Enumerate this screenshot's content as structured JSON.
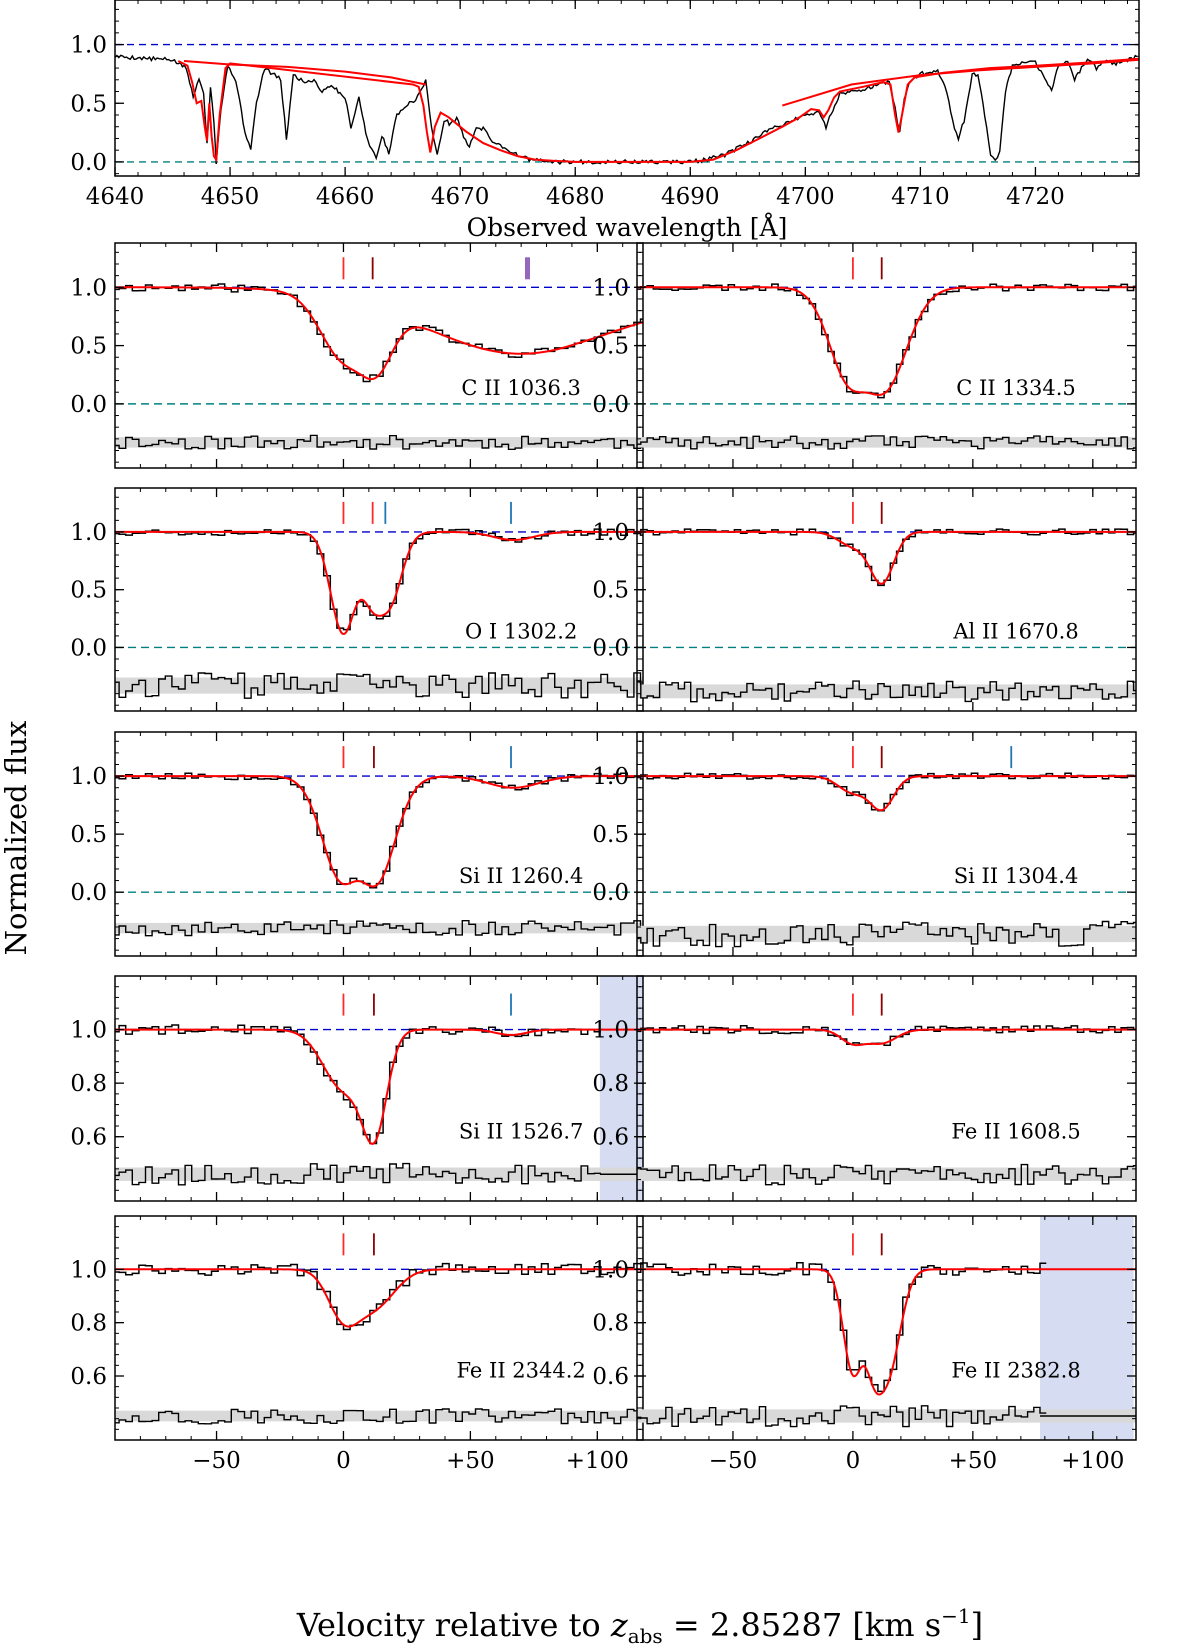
{
  "figure": {
    "ylabel": "Normalized flux",
    "velocity_label_prefix": "Velocity relative to ",
    "velocity_label_z": "z",
    "velocity_label_sub": "abs",
    "velocity_label_suffix": " = 2.85287 [km s",
    "velocity_label_exp": "−1",
    "velocity_label_close": "]",
    "colors": {
      "data": "#000000",
      "model": "#ff0000",
      "continuum": "#0000cc",
      "zero": "#008080",
      "residual_band": "#d9d9d9",
      "masked": "#c8d2ee",
      "tick_red": "#ff2a2a",
      "tick_darkred": "#8b0000",
      "tick_blue": "#1f77b4",
      "tick_purple": "#9467bd"
    }
  },
  "chart_data": [
    {
      "type": "line",
      "panel": "overview",
      "xlabel": "Observed wavelength [Å]",
      "xlim": [
        4640,
        4729
      ],
      "ylim": [
        -0.12,
        1.38
      ],
      "xticks": [
        4640,
        4650,
        4660,
        4670,
        4680,
        4690,
        4700,
        4710,
        4720
      ],
      "xtick_labels": [
        "4640",
        "4650",
        "4660",
        "4670",
        "4680",
        "4690",
        "4700",
        "4710",
        "4720"
      ],
      "yticks": [
        0.0,
        0.5,
        1.0
      ],
      "ytick_labels": [
        "0.0",
        "0.5",
        "1.0"
      ],
      "continuum_level": 1.0,
      "zero_level": 0.0,
      "model_continuum_x": [
        4646.0,
        4650.0,
        4655,
        4660,
        4664,
        4667.0,
        4690,
        4698,
        4704,
        4707.0,
        4710,
        4715,
        4720,
        4725,
        4729
      ],
      "model_continuum_y": [
        0.86,
        0.83,
        0.81,
        0.77,
        0.72,
        0.66,
        0.0,
        0.48,
        0.66,
        0.7,
        0.74,
        0.78,
        0.81,
        0.84,
        0.87
      ],
      "series": [
        {
          "name": "data",
          "x": [
            4640,
            4643,
            4645,
            4646.2,
            4646.8,
            4647.3,
            4647.7,
            4648.0,
            4648.3,
            4648.6,
            4648.8,
            4649.2,
            4649.8,
            4650.5,
            4651.3,
            4651.8,
            4652.3,
            4653,
            4654.4,
            4654.9,
            4655.5,
            4656.5,
            4657.3,
            4658,
            4658.8,
            4659.4,
            4660.0,
            4660.5,
            4661.2,
            4661.8,
            4662.3,
            4662.7,
            4663.2,
            4663.8,
            4664.5,
            4665.0,
            4665.6,
            4666.3,
            4667.0,
            4667.5,
            4668.0,
            4668.6,
            4669.2,
            4669.7,
            4670.3,
            4670.8,
            4671.4,
            4672.0,
            4672.8,
            4673.5,
            4674.2,
            4675.0,
            4676.0,
            4677,
            4678,
            4680,
            4683,
            4686,
            4689,
            4691,
            4693,
            4695,
            4697,
            4698.5,
            4700,
            4701.2,
            4701.8,
            4702.4,
            4703,
            4705,
            4706.5,
            4707.3,
            4707.8,
            4708.2,
            4708.6,
            4709.2,
            4710,
            4711.5,
            4712.3,
            4712.8,
            4713.3,
            4713.8,
            4714.5,
            4715.0,
            4715.6,
            4716.1,
            4716.5,
            4716.9,
            4717.4,
            4718,
            4719,
            4720,
            4720.8,
            4721.4,
            4722,
            4722.8,
            4723.4,
            4724,
            4724.7,
            4725.3,
            4726,
            4727,
            4729
          ],
          "y": [
            0.9,
            0.88,
            0.87,
            0.8,
            0.55,
            0.72,
            0.6,
            0.15,
            0.65,
            0.35,
            0.0,
            0.45,
            0.82,
            0.7,
            0.25,
            0.12,
            0.5,
            0.8,
            0.7,
            0.2,
            0.74,
            0.68,
            0.7,
            0.6,
            0.66,
            0.6,
            0.55,
            0.3,
            0.55,
            0.25,
            0.1,
            0.03,
            0.22,
            0.08,
            0.4,
            0.46,
            0.5,
            0.55,
            0.7,
            0.3,
            0.05,
            0.36,
            0.32,
            0.38,
            0.22,
            0.12,
            0.3,
            0.28,
            0.18,
            0.14,
            0.1,
            0.06,
            0.02,
            0.01,
            0.0,
            0.0,
            0.0,
            0.0,
            0.0,
            0.01,
            0.06,
            0.16,
            0.28,
            0.34,
            0.4,
            0.42,
            0.3,
            0.45,
            0.58,
            0.62,
            0.66,
            0.68,
            0.45,
            0.25,
            0.55,
            0.7,
            0.75,
            0.78,
            0.6,
            0.35,
            0.2,
            0.35,
            0.74,
            0.75,
            0.4,
            0.05,
            0.0,
            0.1,
            0.6,
            0.82,
            0.84,
            0.85,
            0.7,
            0.62,
            0.82,
            0.86,
            0.7,
            0.8,
            0.88,
            0.8,
            0.86,
            0.84,
            0.9
          ]
        },
        {
          "name": "model",
          "x": [
            4645.5,
            4646.3,
            4646.7,
            4647.1,
            4647.5,
            4647.8,
            4648.0,
            4648.2,
            4648.4,
            4648.6,
            4648.8,
            4649.1,
            4649.6,
            4650.0,
            4665.9,
            4666.4,
            4666.8,
            4667.1,
            4667.4,
            4667.8,
            4668.3,
            4669.0,
            4670.5,
            4672.0,
            4673.5,
            4675.0,
            4676.5,
            4678,
            4680,
            4683,
            4687,
            4690,
            4692,
            4694,
            4696,
            4698,
            4699.5,
            4700.5,
            4701.2,
            4701.6,
            4702.0,
            4702.5,
            4703,
            4705,
            4706.8,
            4707.4,
            4707.8,
            4708.1,
            4708.4,
            4708.9,
            4709.5,
            4712,
            4716,
            4720,
            4725,
            4729
          ],
          "y": [
            0.86,
            0.82,
            0.68,
            0.5,
            0.52,
            0.3,
            0.18,
            0.5,
            0.22,
            0.05,
            0.02,
            0.4,
            0.8,
            0.84,
            0.66,
            0.64,
            0.48,
            0.26,
            0.08,
            0.3,
            0.42,
            0.38,
            0.26,
            0.16,
            0.1,
            0.05,
            0.02,
            0.01,
            0.0,
            0.0,
            0.0,
            0.0,
            0.02,
            0.1,
            0.2,
            0.3,
            0.38,
            0.45,
            0.44,
            0.38,
            0.44,
            0.55,
            0.6,
            0.64,
            0.68,
            0.66,
            0.4,
            0.25,
            0.4,
            0.66,
            0.72,
            0.76,
            0.8,
            0.82,
            0.85,
            0.88
          ]
        }
      ]
    },
    {
      "type": "line",
      "panel": "velocity",
      "label": "C II 1036.3",
      "xlim": [
        -90,
        118
      ],
      "ylim": [
        -0.55,
        1.38
      ],
      "xticks": [
        -50,
        0,
        50,
        100
      ],
      "xtick_labels": [
        "−50",
        "0",
        "+50",
        "+100"
      ],
      "yticks": [
        0.0,
        0.5,
        1.0
      ],
      "ytick_labels": [
        "0.0",
        "0.5",
        "1.0"
      ],
      "show_zero": true,
      "comp_ticks": [
        {
          "v": 0,
          "color": "red"
        },
        {
          "v": 11.5,
          "color": "darkred"
        },
        {
          "v": 72.5,
          "color": "purple",
          "thick": true
        }
      ],
      "absorptions": [
        {
          "v": 0,
          "d": 0.55,
          "w": 9
        },
        {
          "v": 12,
          "d": 0.66,
          "w": 7
        },
        {
          "v": 70,
          "d": 0.57,
          "w": 38
        }
      ],
      "slope": 0.0022,
      "slope_start": 92,
      "residual": {
        "center": -0.33,
        "band": 0.09,
        "amp": 0.06
      },
      "noise": 0.035,
      "seed": 11
    },
    {
      "type": "line",
      "panel": "velocity",
      "label": "C II 1334.5",
      "xlim": [
        -90,
        118
      ],
      "ylim": [
        -0.55,
        1.38
      ],
      "xticks": [
        -50,
        0,
        50,
        100
      ],
      "xtick_labels": [
        "−50",
        "0",
        "+50",
        "+100"
      ],
      "yticks": [
        0.0,
        0.5,
        1.0
      ],
      "ytick_labels": [
        "0.0",
        "0.5",
        "1.0"
      ],
      "show_zero": true,
      "comp_ticks": [
        {
          "v": 0,
          "color": "red"
        },
        {
          "v": 12,
          "color": "darkred"
        }
      ],
      "absorptions": [
        {
          "v": 0,
          "d": 0.8,
          "w": 9
        },
        {
          "v": 12,
          "d": 0.88,
          "w": 10
        }
      ],
      "residual": {
        "center": -0.33,
        "band": 0.09,
        "amp": 0.06
      },
      "noise": 0.03,
      "seed": 23
    },
    {
      "type": "line",
      "panel": "velocity",
      "label": "O I 1302.2",
      "xlim": [
        -90,
        118
      ],
      "ylim": [
        -0.55,
        1.38
      ],
      "xticks": [
        -50,
        0,
        50,
        100
      ],
      "xtick_labels": [
        "−50",
        "0",
        "+50",
        "+100"
      ],
      "yticks": [
        0.0,
        0.5,
        1.0
      ],
      "ytick_labels": [
        "0.0",
        "0.5",
        "1.0"
      ],
      "show_zero": true,
      "comp_ticks": [
        {
          "v": 0,
          "color": "red"
        },
        {
          "v": 11.5,
          "color": "red"
        },
        {
          "v": 16.5,
          "color": "blue"
        },
        {
          "v": 66,
          "color": "blue"
        }
      ],
      "absorptions": [
        {
          "v": 0,
          "d": 0.88,
          "w": 5
        },
        {
          "v": 12,
          "d": 0.58,
          "w": 5
        },
        {
          "v": 18,
          "d": 0.55,
          "w": 5
        },
        {
          "v": 67,
          "d": 0.07,
          "w": 8
        }
      ],
      "residual": {
        "center": -0.33,
        "band": 0.14,
        "amp": 0.11
      },
      "noise": 0.03,
      "seed": 37
    },
    {
      "type": "line",
      "panel": "velocity",
      "label": "Al II 1670.8",
      "xlim": [
        -90,
        118
      ],
      "ylim": [
        -0.55,
        1.38
      ],
      "xticks": [
        -50,
        0,
        50,
        100
      ],
      "xtick_labels": [
        "−50",
        "0",
        "+50",
        "+100"
      ],
      "yticks": [
        0.0,
        0.5,
        1.0
      ],
      "ytick_labels": [
        "0.0",
        "0.5",
        "1.0"
      ],
      "show_zero": true,
      "comp_ticks": [
        {
          "v": 0,
          "color": "red"
        },
        {
          "v": 12,
          "color": "darkred"
        }
      ],
      "absorptions": [
        {
          "v": 0,
          "d": 0.12,
          "w": 6
        },
        {
          "v": 12,
          "d": 0.44,
          "w": 5
        }
      ],
      "residual": {
        "center": -0.38,
        "band": 0.12,
        "amp": 0.09
      },
      "noise": 0.025,
      "seed": 41
    },
    {
      "type": "line",
      "panel": "velocity",
      "label": "Si II 1260.4",
      "xlim": [
        -90,
        118
      ],
      "ylim": [
        -0.55,
        1.38
      ],
      "xticks": [
        -50,
        0,
        50,
        100
      ],
      "xtick_labels": [
        "−50",
        "0",
        "+50",
        "+100"
      ],
      "yticks": [
        0.0,
        0.5,
        1.0
      ],
      "ytick_labels": [
        "0.0",
        "0.5",
        "1.0"
      ],
      "show_zero": true,
      "comp_ticks": [
        {
          "v": 0,
          "color": "red"
        },
        {
          "v": 12,
          "color": "darkred"
        },
        {
          "v": 66,
          "color": "blue"
        }
      ],
      "absorptions": [
        {
          "v": 0,
          "d": 0.9,
          "w": 8
        },
        {
          "v": 12,
          "d": 0.93,
          "w": 8
        },
        {
          "v": 67,
          "d": 0.1,
          "w": 10
        }
      ],
      "residual": {
        "center": -0.31,
        "band": 0.09,
        "amp": 0.07
      },
      "noise": 0.03,
      "seed": 53
    },
    {
      "type": "line",
      "panel": "velocity",
      "label": "Si II 1304.4",
      "xlim": [
        -90,
        118
      ],
      "ylim": [
        -0.55,
        1.38
      ],
      "xticks": [
        -50,
        0,
        50,
        100
      ],
      "xtick_labels": [
        "−50",
        "0",
        "+50",
        "+100"
      ],
      "yticks": [
        0.0,
        0.5,
        1.0
      ],
      "ytick_labels": [
        "0.0",
        "0.5",
        "1.0"
      ],
      "show_zero": true,
      "comp_ticks": [
        {
          "v": 0,
          "color": "red"
        },
        {
          "v": 12,
          "color": "darkred"
        },
        {
          "v": 66,
          "color": "blue"
        }
      ],
      "absorptions": [
        {
          "v": 0,
          "d": 0.14,
          "w": 6
        },
        {
          "v": 12,
          "d": 0.28,
          "w": 5
        }
      ],
      "residual": {
        "center": -0.36,
        "band": 0.14,
        "amp": 0.11
      },
      "noise": 0.025,
      "seed": 67
    },
    {
      "type": "line",
      "panel": "velocity",
      "label": "Si II 1526.7",
      "xlim": [
        -90,
        118
      ],
      "ylim": [
        0.36,
        1.2
      ],
      "xticks": [
        -50,
        0,
        50,
        100
      ],
      "xtick_labels": [
        "−50",
        "0",
        "+50",
        "+100"
      ],
      "yticks": [
        0.6,
        0.8,
        1.0
      ],
      "ytick_labels": [
        "0.6",
        "0.8",
        "1.0"
      ],
      "show_zero": false,
      "comp_ticks": [
        {
          "v": 0,
          "color": "red"
        },
        {
          "v": 12,
          "color": "darkred"
        },
        {
          "v": 66,
          "color": "blue"
        }
      ],
      "absorptions": [
        {
          "v": 0,
          "d": 0.22,
          "w": 8
        },
        {
          "v": 12,
          "d": 0.38,
          "w": 5
        },
        {
          "v": 66,
          "d": 0.02,
          "w": 6
        }
      ],
      "masked": [
        101,
        119
      ],
      "residual": {
        "center": 0.46,
        "band": 0.05,
        "amp": 0.04
      },
      "noise": 0.018,
      "seed": 79
    },
    {
      "type": "line",
      "panel": "velocity",
      "label": "Fe II 1608.5",
      "xlim": [
        -90,
        118
      ],
      "ylim": [
        0.36,
        1.2
      ],
      "xticks": [
        -50,
        0,
        50,
        100
      ],
      "xtick_labels": [
        "−50",
        "0",
        "+50",
        "+100"
      ],
      "yticks": [
        0.6,
        0.8,
        1.0
      ],
      "ytick_labels": [
        "0.6",
        "0.8",
        "1.0"
      ],
      "show_zero": false,
      "comp_ticks": [
        {
          "v": 0,
          "color": "red"
        },
        {
          "v": 12,
          "color": "darkred"
        }
      ],
      "absorptions": [
        {
          "v": 0,
          "d": 0.05,
          "w": 5
        },
        {
          "v": 12,
          "d": 0.05,
          "w": 6
        }
      ],
      "residual": {
        "center": 0.46,
        "band": 0.05,
        "amp": 0.04
      },
      "noise": 0.015,
      "seed": 83
    },
    {
      "type": "line",
      "panel": "velocity",
      "label": "Fe II 2344.2",
      "xlim": [
        -90,
        118
      ],
      "ylim": [
        0.36,
        1.2
      ],
      "xticks": [
        -50,
        0,
        50,
        100
      ],
      "xtick_labels": [
        "−50",
        "0",
        "+50",
        "+100"
      ],
      "yticks": [
        0.6,
        0.8,
        1.0
      ],
      "ytick_labels": [
        "0.6",
        "0.8",
        "1.0"
      ],
      "show_zero": false,
      "comp_ticks": [
        {
          "v": 0,
          "color": "red"
        },
        {
          "v": 12,
          "color": "darkred"
        }
      ],
      "absorptions": [
        {
          "v": 0,
          "d": 0.17,
          "w": 6
        },
        {
          "v": 12,
          "d": 0.14,
          "w": 8
        }
      ],
      "masked": [
        117.5,
        119
      ],
      "residual": {
        "center": 0.45,
        "band": 0.04,
        "amp": 0.03
      },
      "noise": 0.022,
      "seed": 97
    },
    {
      "type": "line",
      "panel": "velocity",
      "label": "Fe II 2382.8",
      "xlim": [
        -90,
        118
      ],
      "ylim": [
        0.36,
        1.2
      ],
      "xticks": [
        -50,
        0,
        50,
        100
      ],
      "xtick_labels": [
        "−50",
        "0",
        "+50",
        "+100"
      ],
      "yticks": [
        0.6,
        0.8,
        1.0
      ],
      "ytick_labels": [
        "0.6",
        "0.8",
        "1.0"
      ],
      "show_zero": false,
      "comp_ticks": [
        {
          "v": 0,
          "color": "red"
        },
        {
          "v": 12,
          "color": "darkred"
        }
      ],
      "absorptions": [
        {
          "v": 0,
          "d": 0.38,
          "w": 4
        },
        {
          "v": 9,
          "d": 0.32,
          "w": 4
        },
        {
          "v": 15,
          "d": 0.35,
          "w": 5
        }
      ],
      "masked": [
        78,
        117
      ],
      "residual": {
        "center": 0.45,
        "band": 0.05,
        "amp": 0.04
      },
      "noise": 0.025,
      "seed": 101
    }
  ]
}
